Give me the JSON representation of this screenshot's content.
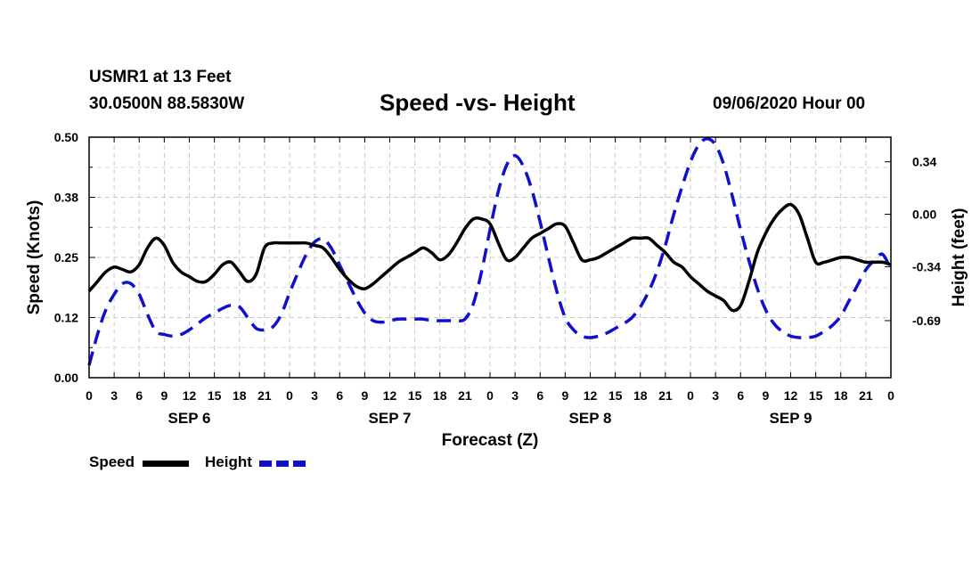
{
  "header": {
    "station": "USMR1 at 13 Feet",
    "coords": "30.0500N 88.5830W",
    "title": "Speed -vs- Height",
    "datetime": "09/06/2020 Hour 00"
  },
  "legend": {
    "speed_label": "Speed",
    "height_label": "Height"
  },
  "chart_data": {
    "type": "line",
    "title": "Speed -vs- Height",
    "xlabel": "Forecast (Z)",
    "ylabel_left": "Speed (Knots)",
    "ylabel_right": "Height (feet)",
    "x_range_hours": [
      0,
      96
    ],
    "x_tick_labels": [
      "0",
      "3",
      "6",
      "9",
      "12",
      "15",
      "18",
      "21",
      "0",
      "3",
      "6",
      "9",
      "12",
      "15",
      "18",
      "21",
      "0",
      "3",
      "6",
      "9",
      "12",
      "15",
      "18",
      "21",
      "0",
      "3",
      "6",
      "9",
      "12",
      "15",
      "18",
      "21",
      "0"
    ],
    "day_labels": [
      "SEP 6",
      "SEP 7",
      "SEP 8",
      "SEP 9"
    ],
    "y_left": {
      "range": [
        0,
        0.5
      ],
      "ticks": [
        0.0,
        0.125,
        0.25,
        0.375,
        0.5
      ],
      "tick_labels": [
        "0.00",
        "0.12",
        "0.25",
        "0.38",
        "0.50"
      ]
    },
    "y_right": {
      "range": [
        -1.06,
        0.5
      ],
      "ticks": [
        0.34,
        0.0,
        -0.34,
        -0.69
      ],
      "tick_labels": [
        "0.34",
        "0.00",
        "-0.34",
        "-0.69"
      ]
    },
    "grid": true,
    "series": [
      {
        "name": "Speed",
        "axis": "left",
        "color": "#000000",
        "style": "solid",
        "x": [
          0,
          1,
          2,
          3,
          4,
          5,
          6,
          7,
          8,
          9,
          10,
          11,
          12,
          13,
          14,
          15,
          16,
          17,
          18,
          19,
          20,
          21,
          22,
          23,
          24,
          25,
          26,
          27,
          28,
          29,
          30,
          31,
          32,
          33,
          34,
          35,
          36,
          37,
          38,
          39,
          40,
          41,
          42,
          43,
          44,
          45,
          46,
          47,
          48,
          49,
          50,
          51,
          52,
          53,
          54,
          55,
          56,
          57,
          58,
          59,
          60,
          61,
          62,
          63,
          64,
          65,
          66,
          67,
          68,
          69,
          70,
          71,
          72,
          73,
          74,
          75,
          76,
          77,
          78,
          79,
          80,
          81,
          82,
          83,
          84,
          85,
          86,
          87,
          88,
          89,
          90,
          91,
          92,
          93,
          94,
          95,
          96
        ],
        "values": [
          0.18,
          0.2,
          0.22,
          0.23,
          0.225,
          0.22,
          0.235,
          0.27,
          0.29,
          0.275,
          0.24,
          0.22,
          0.21,
          0.2,
          0.2,
          0.215,
          0.235,
          0.24,
          0.22,
          0.2,
          0.215,
          0.27,
          0.28,
          0.28,
          0.28,
          0.28,
          0.28,
          0.275,
          0.27,
          0.25,
          0.225,
          0.205,
          0.19,
          0.185,
          0.195,
          0.21,
          0.225,
          0.24,
          0.25,
          0.26,
          0.27,
          0.26,
          0.245,
          0.255,
          0.28,
          0.31,
          0.33,
          0.33,
          0.32,
          0.28,
          0.245,
          0.25,
          0.27,
          0.29,
          0.3,
          0.31,
          0.32,
          0.315,
          0.28,
          0.245,
          0.245,
          0.25,
          0.26,
          0.27,
          0.28,
          0.29,
          0.29,
          0.29,
          0.275,
          0.26,
          0.24,
          0.23,
          0.21,
          0.195,
          0.18,
          0.17,
          0.16,
          0.14,
          0.15,
          0.2,
          0.26,
          0.3,
          0.33,
          0.35,
          0.36,
          0.34,
          0.29,
          0.24,
          0.24,
          0.245,
          0.25,
          0.25,
          0.245,
          0.24,
          0.24,
          0.24,
          0.235
        ]
      },
      {
        "name": "Height",
        "axis": "right",
        "color": "#1010cc",
        "style": "dashed",
        "x": [
          0,
          1,
          2,
          3,
          4,
          5,
          6,
          7,
          8,
          9,
          10,
          11,
          12,
          13,
          14,
          15,
          16,
          17,
          18,
          19,
          20,
          21,
          22,
          23,
          24,
          25,
          26,
          27,
          28,
          29,
          30,
          31,
          32,
          33,
          34,
          35,
          36,
          37,
          38,
          39,
          40,
          41,
          42,
          43,
          44,
          45,
          46,
          47,
          48,
          49,
          50,
          51,
          52,
          53,
          54,
          55,
          56,
          57,
          58,
          59,
          60,
          61,
          62,
          63,
          64,
          65,
          66,
          67,
          68,
          69,
          70,
          71,
          72,
          73,
          74,
          75,
          76,
          77,
          78,
          79,
          80,
          81,
          82,
          83,
          84,
          85,
          86,
          87,
          88,
          89,
          90,
          91,
          92,
          93,
          94,
          95,
          96
        ],
        "values": [
          -0.98,
          -0.78,
          -0.62,
          -0.52,
          -0.45,
          -0.45,
          -0.52,
          -0.65,
          -0.76,
          -0.78,
          -0.79,
          -0.78,
          -0.75,
          -0.71,
          -0.67,
          -0.64,
          -0.61,
          -0.59,
          -0.6,
          -0.67,
          -0.74,
          -0.75,
          -0.73,
          -0.65,
          -0.51,
          -0.38,
          -0.26,
          -0.18,
          -0.16,
          -0.22,
          -0.33,
          -0.44,
          -0.55,
          -0.64,
          -0.69,
          -0.7,
          -0.69,
          -0.68,
          -0.68,
          -0.68,
          -0.68,
          -0.69,
          -0.69,
          -0.69,
          -0.69,
          -0.68,
          -0.58,
          -0.37,
          -0.1,
          0.15,
          0.32,
          0.38,
          0.31,
          0.16,
          -0.05,
          -0.28,
          -0.5,
          -0.67,
          -0.75,
          -0.79,
          -0.8,
          -0.79,
          -0.77,
          -0.74,
          -0.71,
          -0.67,
          -0.6,
          -0.5,
          -0.37,
          -0.2,
          0.0,
          0.18,
          0.34,
          0.45,
          0.49,
          0.45,
          0.32,
          0.12,
          -0.1,
          -0.3,
          -0.48,
          -0.62,
          -0.71,
          -0.76,
          -0.79,
          -0.8,
          -0.8,
          -0.79,
          -0.76,
          -0.72,
          -0.66,
          -0.56,
          -0.46,
          -0.36,
          -0.3,
          -0.26,
          -0.36
        ]
      }
    ]
  }
}
